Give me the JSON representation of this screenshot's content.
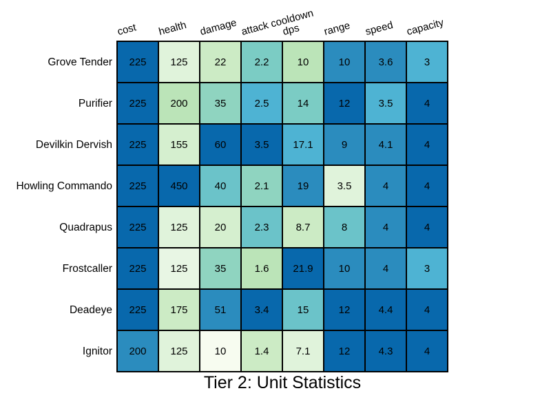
{
  "chart_data": {
    "type": "heatmap",
    "title": "Tier 2: Unit Statistics",
    "columns": [
      "cost",
      "health",
      "damage",
      "attack cooldown",
      "dps",
      "range",
      "speed",
      "capacity"
    ],
    "rows": [
      "Grove Tender",
      "Purifier",
      "Devilkin Dervish",
      "Howling Commando",
      "Quadrapus",
      "Frostcaller",
      "Deadeye",
      "Ignitor"
    ],
    "values": [
      [
        "225",
        "125",
        "22",
        "2.2",
        "10",
        "10",
        "3.6",
        "3"
      ],
      [
        "225",
        "200",
        "35",
        "2.5",
        "14",
        "12",
        "3.5",
        "4"
      ],
      [
        "225",
        "155",
        "60",
        "3.5",
        "17.1",
        "9",
        "4.1",
        "4"
      ],
      [
        "225",
        "450",
        "40",
        "2.1",
        "19",
        "3.5",
        "4",
        "4"
      ],
      [
        "225",
        "125",
        "20",
        "2.3",
        "8.7",
        "8",
        "4",
        "4"
      ],
      [
        "225",
        "125",
        "35",
        "1.6",
        "21.9",
        "10",
        "4",
        "3"
      ],
      [
        "225",
        "175",
        "51",
        "3.4",
        "15",
        "12",
        "4.4",
        "4"
      ],
      [
        "200",
        "125",
        "10",
        "1.4",
        "7.1",
        "12",
        "4.3",
        "4"
      ]
    ],
    "colormap": "GnBu (column-normalized)",
    "cell_colors": [
      [
        "#0868ac",
        "#e0f3db",
        "#ccebc5",
        "#7bccc4",
        "#bbe4b8",
        "#2b8cbe",
        "#2b8cbe",
        "#4eb3d3"
      ],
      [
        "#0868ac",
        "#bbe4b8",
        "#8fd4c0",
        "#4eb3d3",
        "#7bccc4",
        "#0868ac",
        "#4eb3d3",
        "#0868ac"
      ],
      [
        "#0868ac",
        "#d5efcf",
        "#0868ac",
        "#0868ac",
        "#4eb3d3",
        "#2b8cbe",
        "#2b8cbe",
        "#0868ac"
      ],
      [
        "#0868ac",
        "#0868ac",
        "#6bc3c9",
        "#8fd4c0",
        "#2b8cbe",
        "#e0f3db",
        "#2b8cbe",
        "#0868ac"
      ],
      [
        "#0868ac",
        "#e0f3db",
        "#d5efcf",
        "#6bc3c9",
        "#ccebc5",
        "#6bc3c9",
        "#2b8cbe",
        "#0868ac"
      ],
      [
        "#0868ac",
        "#e8f6e4",
        "#8fd4c0",
        "#bbe4b8",
        "#0868ac",
        "#2b8cbe",
        "#2b8cbe",
        "#4eb3d3"
      ],
      [
        "#0868ac",
        "#ccebc5",
        "#2b8cbe",
        "#0868ac",
        "#6bc3c9",
        "#0868ac",
        "#0868ac",
        "#0868ac"
      ],
      [
        "#2b8cbe",
        "#e0f3db",
        "#f7fcf0",
        "#ccebc5",
        "#e0f3db",
        "#0868ac",
        "#0868ac",
        "#0868ac"
      ]
    ]
  }
}
